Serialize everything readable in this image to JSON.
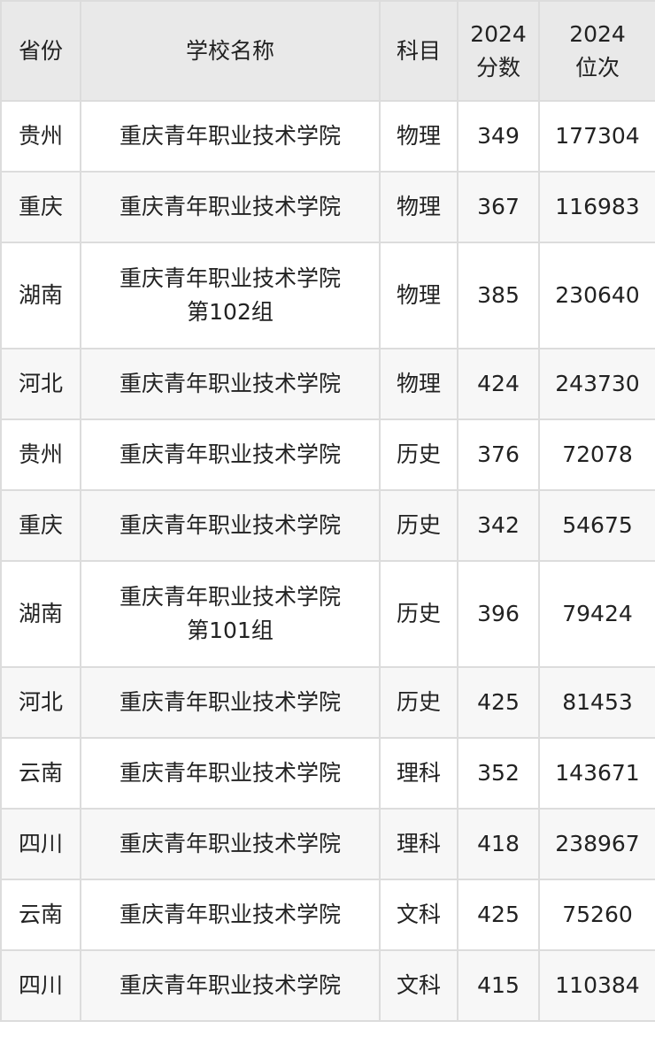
{
  "header": {
    "province": "省份",
    "school": "学校名称",
    "subject": "科目",
    "score_year": "2024",
    "score": "分数",
    "rank_year": "2024",
    "rank": "位次"
  },
  "colors": {
    "header_bg": "#e9e9e9",
    "alt_row_bg": "#f7f7f7",
    "border": "#dcdcdc"
  },
  "rows": [
    {
      "province": "贵州",
      "school": "重庆青年职业技术学院",
      "group": "",
      "subject": "物理",
      "score": "349",
      "rank": "177304"
    },
    {
      "province": "重庆",
      "school": "重庆青年职业技术学院",
      "group": "",
      "subject": "物理",
      "score": "367",
      "rank": "116983"
    },
    {
      "province": "湖南",
      "school": "重庆青年职业技术学院",
      "group": "第102组",
      "subject": "物理",
      "score": "385",
      "rank": "230640"
    },
    {
      "province": "河北",
      "school": "重庆青年职业技术学院",
      "group": "",
      "subject": "物理",
      "score": "424",
      "rank": "243730"
    },
    {
      "province": "贵州",
      "school": "重庆青年职业技术学院",
      "group": "",
      "subject": "历史",
      "score": "376",
      "rank": "72078"
    },
    {
      "province": "重庆",
      "school": "重庆青年职业技术学院",
      "group": "",
      "subject": "历史",
      "score": "342",
      "rank": "54675"
    },
    {
      "province": "湖南",
      "school": "重庆青年职业技术学院",
      "group": "第101组",
      "subject": "历史",
      "score": "396",
      "rank": "79424"
    },
    {
      "province": "河北",
      "school": "重庆青年职业技术学院",
      "group": "",
      "subject": "历史",
      "score": "425",
      "rank": "81453"
    },
    {
      "province": "云南",
      "school": "重庆青年职业技术学院",
      "group": "",
      "subject": "理科",
      "score": "352",
      "rank": "143671"
    },
    {
      "province": "四川",
      "school": "重庆青年职业技术学院",
      "group": "",
      "subject": "理科",
      "score": "418",
      "rank": "238967"
    },
    {
      "province": "云南",
      "school": "重庆青年职业技术学院",
      "group": "",
      "subject": "文科",
      "score": "425",
      "rank": "75260"
    },
    {
      "province": "四川",
      "school": "重庆青年职业技术学院",
      "group": "",
      "subject": "文科",
      "score": "415",
      "rank": "110384"
    }
  ]
}
